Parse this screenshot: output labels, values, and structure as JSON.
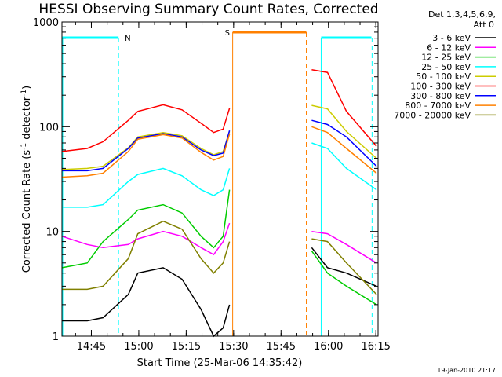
{
  "chart_data": {
    "type": "line",
    "title": "HESSI Observing Summary Count Rates, Corrected",
    "xlabel": "Start Time (25-Mar-06 14:35:42)",
    "ylabel_main": "Corrected Count Rate (s",
    "ylabel_sup1": "-1",
    "ylabel_mid": " detector",
    "ylabel_sup2": "-1",
    "ylabel_end": ")",
    "yscale": "log",
    "ylim": [
      1,
      1000
    ],
    "xlim_minutes": [
      0,
      100
    ],
    "x_ticks": [
      {
        "label": "14:45",
        "minute": 9.3
      },
      {
        "label": "15:00",
        "minute": 24.3
      },
      {
        "label": "15:15",
        "minute": 39.3
      },
      {
        "label": "15:30",
        "minute": 54.3
      },
      {
        "label": "15:45",
        "minute": 69.3
      },
      {
        "label": "16:00",
        "minute": 84.3
      },
      {
        "label": "16:15",
        "minute": 99.3
      }
    ],
    "y_ticks": [
      {
        "label": "1",
        "value": 1
      },
      {
        "label": "10",
        "value": 10
      },
      {
        "label": "100",
        "value": 100
      },
      {
        "label": "1000",
        "value": 1000
      }
    ],
    "legend_header": [
      "Det 1,3,4,5,6,9,",
      "Att 0"
    ],
    "series": [
      {
        "name": "3 - 6 keV",
        "color": "#000000",
        "values": [
          1.4,
          1.4,
          1.5,
          2.5,
          4.0,
          4.5,
          3.5,
          1.8,
          1.0,
          1.2,
          2.0,
          7.0,
          4.5,
          4.0,
          3.0
        ]
      },
      {
        "name": "6 - 12 keV",
        "color": "#ff00ff",
        "values": [
          9.0,
          7.5,
          7.0,
          7.5,
          8.5,
          10.0,
          9.0,
          7.0,
          6.0,
          8.0,
          12.0,
          10.0,
          9.5,
          7.5,
          5.0
        ]
      },
      {
        "name": "12 - 25 keV",
        "color": "#00cc00",
        "values": [
          4.5,
          5.0,
          8.0,
          13.0,
          16.0,
          18.0,
          15.0,
          9.0,
          7.0,
          9.0,
          25.0,
          6.5,
          4.0,
          3.0,
          2.0
        ]
      },
      {
        "name": "25 - 50 keV",
        "color": "#00ffff",
        "values": [
          17,
          17,
          18,
          30,
          35,
          40,
          34,
          25,
          22,
          25,
          40,
          70,
          62,
          40,
          25
        ]
      },
      {
        "name": "50 - 100 keV",
        "color": "#cccc00",
        "values": [
          39,
          40,
          42,
          63,
          80,
          88,
          82,
          62,
          54,
          58,
          90,
          160,
          148,
          90,
          50
        ]
      },
      {
        "name": "100 - 300 keV",
        "color": "#ff0000",
        "values": [
          58,
          62,
          72,
          115,
          140,
          162,
          145,
          108,
          88,
          95,
          150,
          350,
          330,
          140,
          65
        ]
      },
      {
        "name": "300 - 800 keV",
        "color": "#0000ff",
        "values": [
          38,
          38,
          40,
          62,
          78,
          86,
          80,
          60,
          53,
          56,
          92,
          115,
          105,
          80,
          42
        ]
      },
      {
        "name": "800 - 7000 keV",
        "color": "#ff8000",
        "values": [
          33,
          34,
          36,
          58,
          76,
          84,
          78,
          57,
          48,
          52,
          85,
          100,
          88,
          62,
          36
        ]
      },
      {
        "name": "7000 - 20000 keV",
        "color": "#808000",
        "values": [
          2.8,
          2.8,
          3.0,
          5.5,
          9.5,
          12.5,
          10.5,
          5.5,
          4.0,
          5.0,
          8.0,
          8.5,
          8.0,
          5.0,
          2.5
        ]
      }
    ],
    "x_minutes": [
      0,
      8,
      13,
      21,
      24,
      32,
      38,
      44,
      48,
      51,
      53,
      79,
      84,
      90,
      99.5
    ],
    "flag_markers": [
      {
        "label": "N",
        "color": "#00ffff",
        "x_minutes": [
          0,
          17.9
        ],
        "vlines": [
          17.9,
          98.1
        ]
      },
      {
        "label": "S",
        "color": "#ff8000",
        "x_minutes": [
          54.0,
          77.3
        ],
        "vlines": [
          54.0,
          77.3
        ]
      },
      {
        "label": "",
        "color": "#00ffff",
        "x_minutes": [
          82.0,
          97.9
        ],
        "vlines": [
          82.0
        ]
      }
    ]
  },
  "footer_date": "19-Jan-2010 21:17"
}
